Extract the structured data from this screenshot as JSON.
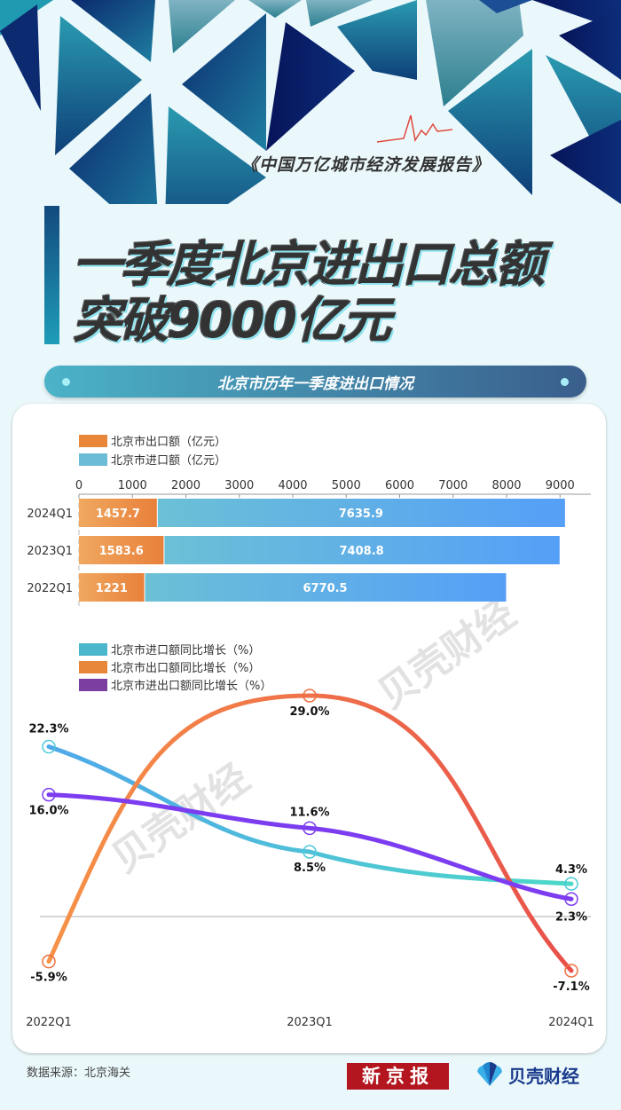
{
  "header": {
    "report_title": "《中国万亿城市经济发展报告》",
    "headline_line1": "一季度北京进出口总额",
    "headline_line2": "突破9000亿元",
    "banner_title": "北京市历年一季度进出口情况"
  },
  "footer": {
    "source": "数据来源：北京海关",
    "logo_xjb": "新京报",
    "logo_bk": "贝壳财经"
  },
  "watermark": "贝壳财经",
  "colors": {
    "export": "#e8873a",
    "import": "#6bbcd6",
    "import_growth": "#4bb7cc",
    "export_growth": "#e8873a",
    "total_growth": "#7a3fa0"
  },
  "chart_data": [
    {
      "type": "bar",
      "stacked": true,
      "orientation": "horizontal",
      "title": "",
      "categories": [
        "2024Q1",
        "2023Q1",
        "2022Q1"
      ],
      "series": [
        {
          "name": "北京市出口额（亿元）",
          "values": [
            1457.7,
            1583.6,
            1221
          ]
        },
        {
          "name": "北京市进口额（亿元）",
          "values": [
            7635.9,
            7408.8,
            6770.5
          ]
        }
      ],
      "xticks": [
        "0",
        "1000",
        "2000",
        "3000",
        "4000",
        "5000",
        "6000",
        "7000",
        "8000",
        "9000"
      ],
      "xlim": [
        0,
        9500
      ],
      "legend_position": "top-left",
      "grid": false
    },
    {
      "type": "line",
      "title": "",
      "categories": [
        "2022Q1",
        "2023Q1",
        "2024Q1"
      ],
      "series": [
        {
          "name": "北京市进口额同比增长（%）",
          "values": [
            22.3,
            8.5,
            4.3
          ],
          "labels": [
            "22.3%",
            "8.5%",
            "4.3%"
          ]
        },
        {
          "name": "北京市出口额同比增长（%）",
          "values": [
            -5.9,
            29.0,
            -7.1
          ],
          "labels": [
            "-5.9%",
            "29.0%",
            "-7.1%"
          ]
        },
        {
          "name": "北京市进出口额同比增长（%）",
          "values": [
            16.0,
            11.6,
            2.3
          ],
          "labels": [
            "16.0%",
            "11.6%",
            "2.3%"
          ]
        }
      ],
      "ylim": [
        -10,
        32
      ],
      "smooth": true,
      "legend_position": "top-left",
      "grid": false
    }
  ]
}
